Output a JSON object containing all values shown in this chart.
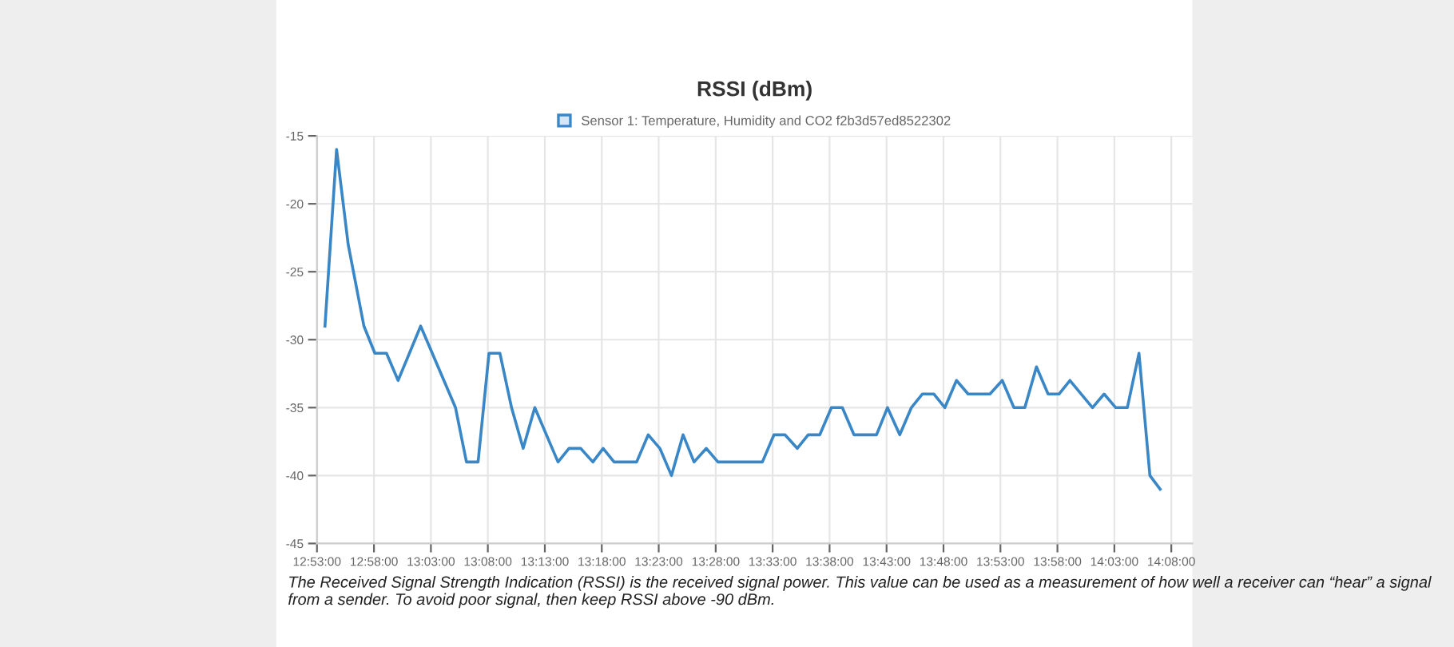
{
  "chart_data": {
    "type": "line",
    "title": "RSSI (dBm)",
    "x": [
      12.895,
      12.912,
      12.929,
      12.952,
      12.968,
      12.985,
      13.002,
      13.035,
      13.086,
      13.102,
      13.119,
      13.135,
      13.151,
      13.168,
      13.185,
      13.202,
      13.236,
      13.252,
      13.269,
      13.287,
      13.302,
      13.318,
      13.351,
      13.368,
      13.385,
      13.402,
      13.419,
      13.435,
      13.453,
      13.47,
      13.535,
      13.552,
      13.568,
      13.586,
      13.602,
      13.619,
      13.636,
      13.652,
      13.669,
      13.702,
      13.718,
      13.736,
      13.753,
      13.769,
      13.786,
      13.802,
      13.819,
      13.836,
      13.868,
      13.886,
      13.903,
      13.919,
      13.936,
      13.953,
      13.969,
      13.985,
      14.018,
      14.035,
      14.052,
      14.069,
      14.086,
      14.102,
      14.117
    ],
    "series": [
      {
        "name": "Sensor 1: Temperature, Humidity and CO2 f2b3d57ed8522302",
        "color": "#3a87c8",
        "values": [
          -29,
          -16,
          -23,
          -29,
          -31,
          -31,
          -33,
          -29,
          -35,
          -39,
          -39,
          -31,
          -31,
          -35,
          -38,
          -35,
          -39,
          -38,
          -38,
          -39,
          -38,
          -39,
          -39,
          -37,
          -38,
          -40,
          -37,
          -39,
          -38,
          -39,
          -39,
          -37,
          -37,
          -38,
          -37,
          -37,
          -35,
          -35,
          -37,
          -37,
          -35,
          -37,
          -35,
          -34,
          -34,
          -35,
          -33,
          -34,
          -34,
          -33,
          -35,
          -35,
          -32,
          -34,
          -34,
          -33,
          -35,
          -34,
          -35,
          -35,
          -31,
          -40,
          -41
        ]
      }
    ],
    "xlim": [
      12.8833,
      14.164
    ],
    "xticks": [
      {
        "value": 12.8833,
        "label": "12:53:00"
      },
      {
        "value": 12.9667,
        "label": "12:58:00"
      },
      {
        "value": 13.05,
        "label": "13:03:00"
      },
      {
        "value": 13.1333,
        "label": "13:08:00"
      },
      {
        "value": 13.2167,
        "label": "13:13:00"
      },
      {
        "value": 13.3,
        "label": "13:18:00"
      },
      {
        "value": 13.3833,
        "label": "13:23:00"
      },
      {
        "value": 13.4667,
        "label": "13:28:00"
      },
      {
        "value": 13.55,
        "label": "13:33:00"
      },
      {
        "value": 13.6333,
        "label": "13:38:00"
      },
      {
        "value": 13.7167,
        "label": "13:43:00"
      },
      {
        "value": 13.8,
        "label": "13:48:00"
      },
      {
        "value": 13.8833,
        "label": "13:53:00"
      },
      {
        "value": 13.9667,
        "label": "13:58:00"
      },
      {
        "value": 14.05,
        "label": "14:03:00"
      },
      {
        "value": 14.1333,
        "label": "14:08:00"
      }
    ],
    "ylim": [
      -45,
      -15
    ],
    "yticks": [
      -45,
      -40,
      -35,
      -30,
      -25,
      -20,
      -15
    ],
    "grid": true,
    "legend": "top",
    "marker": "none",
    "line_style": "solid",
    "annotations": [
      "The Received Signal Strength Indication (RSSI) is the received signal power. This value can be used as a measurement of how well a receiver can “hear” a signal from a sender. To avoid poor signal, then keep RSSI above -90 dBm."
    ]
  }
}
